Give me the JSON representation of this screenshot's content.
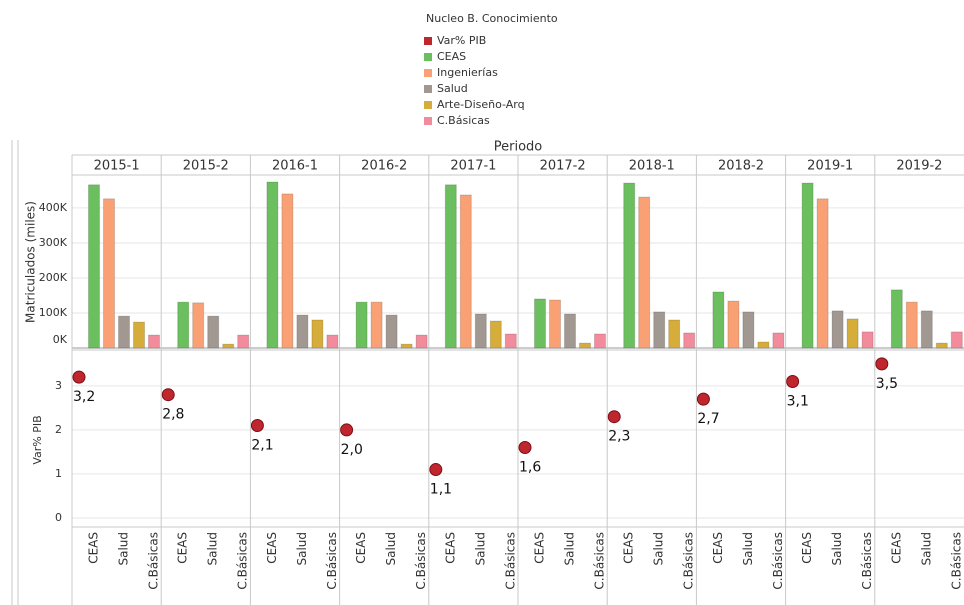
{
  "chart_data": [
    {
      "type": "bar",
      "legend_title": "Nucleo B. Conocimiento",
      "x_title": "Periodo",
      "y_label": "Matriculados (miles)",
      "categories": [
        "2015-1",
        "2015-2",
        "2016-1",
        "2016-2",
        "2017-1",
        "2017-2",
        "2018-1",
        "2018-2",
        "2019-1",
        "2019-2"
      ],
      "series": [
        {
          "name": "CEAS",
          "color": "#6cbf5e",
          "values": [
            466000,
            131000,
            474000,
            131000,
            466000,
            140000,
            471000,
            160000,
            471000,
            166000
          ]
        },
        {
          "name": "Ingenierías",
          "color": "#f9a174",
          "values": [
            426000,
            129000,
            440000,
            131000,
            437000,
            137000,
            431000,
            134000,
            426000,
            131000
          ]
        },
        {
          "name": "Salud",
          "color": "#a29892",
          "values": [
            91000,
            91000,
            94000,
            94000,
            97000,
            97000,
            103000,
            103000,
            106000,
            106000
          ]
        },
        {
          "name": "Arte-Diseño-Arq",
          "color": "#d6ad3a",
          "values": [
            74000,
            11000,
            80000,
            11000,
            77000,
            14000,
            80000,
            17000,
            83000,
            14000
          ]
        },
        {
          "name": "C.Básicas",
          "color": "#f28b9c",
          "values": [
            37000,
            37000,
            37000,
            37000,
            40000,
            40000,
            43000,
            43000,
            46000,
            46000
          ]
        }
      ],
      "ylim": [
        0,
        494000
      ],
      "yticks": [
        {
          "value": 0,
          "label": "0K"
        },
        {
          "value": 100000,
          "label": "100K"
        },
        {
          "value": 200000,
          "label": "200K"
        },
        {
          "value": 300000,
          "label": "300K"
        },
        {
          "value": 400000,
          "label": "400K"
        }
      ],
      "grid": true
    },
    {
      "type": "dot",
      "y_label": "Var% PIB",
      "series": [
        {
          "name": "Var% PIB",
          "color": "#c0262e",
          "values": [
            3.2,
            2.8,
            2.1,
            2.0,
            1.1,
            1.6,
            2.3,
            2.7,
            3.1,
            3.5
          ],
          "value_labels": [
            "3,2",
            "2,8",
            "2,1",
            "2,0",
            "1,1",
            "1,6",
            "2,3",
            "2,7",
            "3,1",
            "3,5"
          ]
        }
      ],
      "ylim": [
        -0.16,
        3.77
      ],
      "yticks": [
        0,
        1,
        2,
        3
      ],
      "grid": true
    }
  ]
}
